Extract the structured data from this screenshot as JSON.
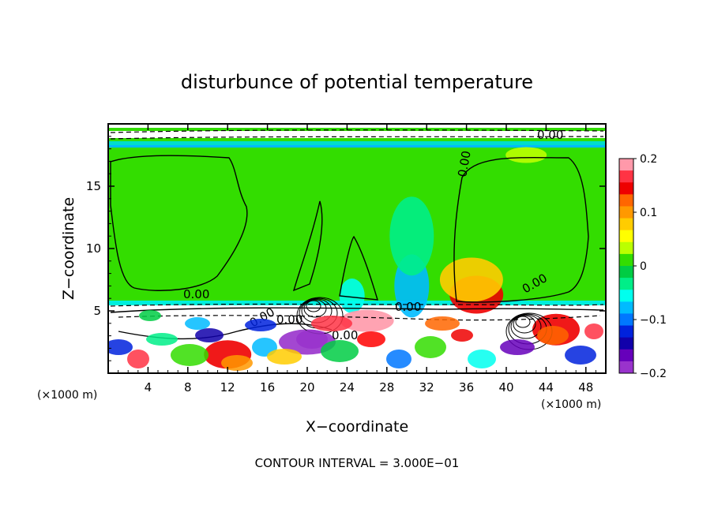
{
  "chart_data": {
    "type": "heatmap",
    "title": "disturbunce of potential temperature",
    "xlabel": "X−coordinate",
    "ylabel": "Z−coordinate",
    "x_unit": "(×1000 m)",
    "y_unit": "(×1000 m)",
    "xlim": [
      0,
      50
    ],
    "ylim": [
      0,
      20
    ],
    "x_ticks": [
      4,
      8,
      12,
      16,
      20,
      24,
      28,
      32,
      36,
      40,
      44,
      48
    ],
    "y_ticks": [
      5,
      10,
      15
    ],
    "colorbar": {
      "range": [
        -0.2,
        0.2
      ],
      "ticks": [
        "0.2",
        "0.1",
        "0",
        "−0.1",
        "−0.2"
      ],
      "colors": [
        "#ff99aa",
        "#ff3344",
        "#ee0000",
        "#ff6600",
        "#ff9900",
        "#ffcc00",
        "#ffff00",
        "#bbff00",
        "#33dd00",
        "#00cc44",
        "#00ee88",
        "#00ffee",
        "#00bbff",
        "#0077ff",
        "#0022dd",
        "#1100aa",
        "#6600bb",
        "#9933cc"
      ]
    },
    "contour_labels": [
      "0.00",
      "0.00",
      "0.00",
      "0.00",
      "0.00",
      "0.00",
      "0.00",
      "0.00"
    ],
    "contour_interval_text": "CONTOUR INTERVAL = 3.000E−01",
    "features": [
      {
        "x": 37,
        "z": 6.3,
        "value": 0.15
      },
      {
        "x": 36.5,
        "z": 7.5,
        "value": 0.08
      },
      {
        "x": 30.5,
        "z": 7,
        "value": -0.08
      },
      {
        "x": 30.5,
        "z": 11,
        "value": -0.04
      },
      {
        "x": 24.5,
        "z": 6.2,
        "value": -0.06
      },
      {
        "x": 12,
        "z": 1.5,
        "value": 0.15
      },
      {
        "x": 26,
        "z": 4.2,
        "value": 0.18
      },
      {
        "x": 45,
        "z": 3.5,
        "value": 0.15
      },
      {
        "x": 42,
        "z": 17.5,
        "value": 0.04
      },
      {
        "x": 20,
        "z": 2.5,
        "value": -0.18
      }
    ]
  }
}
